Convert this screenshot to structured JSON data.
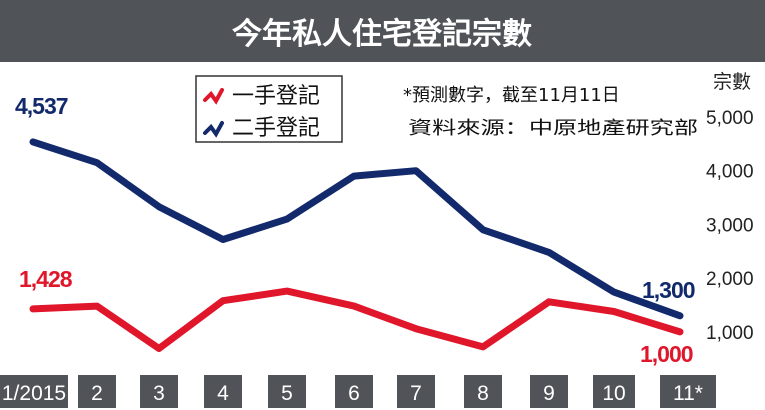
{
  "chart_data": {
    "type": "line",
    "title": "今年私人住宅登記宗數",
    "ylabel": "宗數",
    "categories": [
      "1/2015",
      "2",
      "3",
      "4",
      "5",
      "6",
      "7",
      "8",
      "9",
      "10",
      "11*"
    ],
    "ylim": [
      0,
      5000
    ],
    "yticks": [
      "1,000",
      "2,000",
      "3,000",
      "4,000",
      "5,000"
    ],
    "grid": false,
    "legend_position": "top-left",
    "series": [
      {
        "name": "一手登記",
        "color": "#e0162b",
        "values": [
          1428,
          1480,
          690,
          1580,
          1760,
          1480,
          1060,
          720,
          1560,
          1380,
          1000
        ]
      },
      {
        "name": "二手登記",
        "color": "#12296b",
        "values": [
          4537,
          4150,
          3330,
          2720,
          3100,
          3900,
          4000,
          2900,
          2480,
          1740,
          1300
        ]
      }
    ],
    "annotations": [
      {
        "text": "4,537",
        "series": 1,
        "index": 0
      },
      {
        "text": "1,428",
        "series": 0,
        "index": 0
      },
      {
        "text": "1,300",
        "series": 1,
        "index": 10
      },
      {
        "text": "1,000",
        "series": 0,
        "index": 10
      }
    ],
    "notes": [
      "*預測數字，截至11月11日",
      "資料來源：中原地產研究部"
    ]
  },
  "colors": {
    "title_bar": "#505459",
    "axis_bar": "#505459",
    "tick_box": "#505459"
  }
}
